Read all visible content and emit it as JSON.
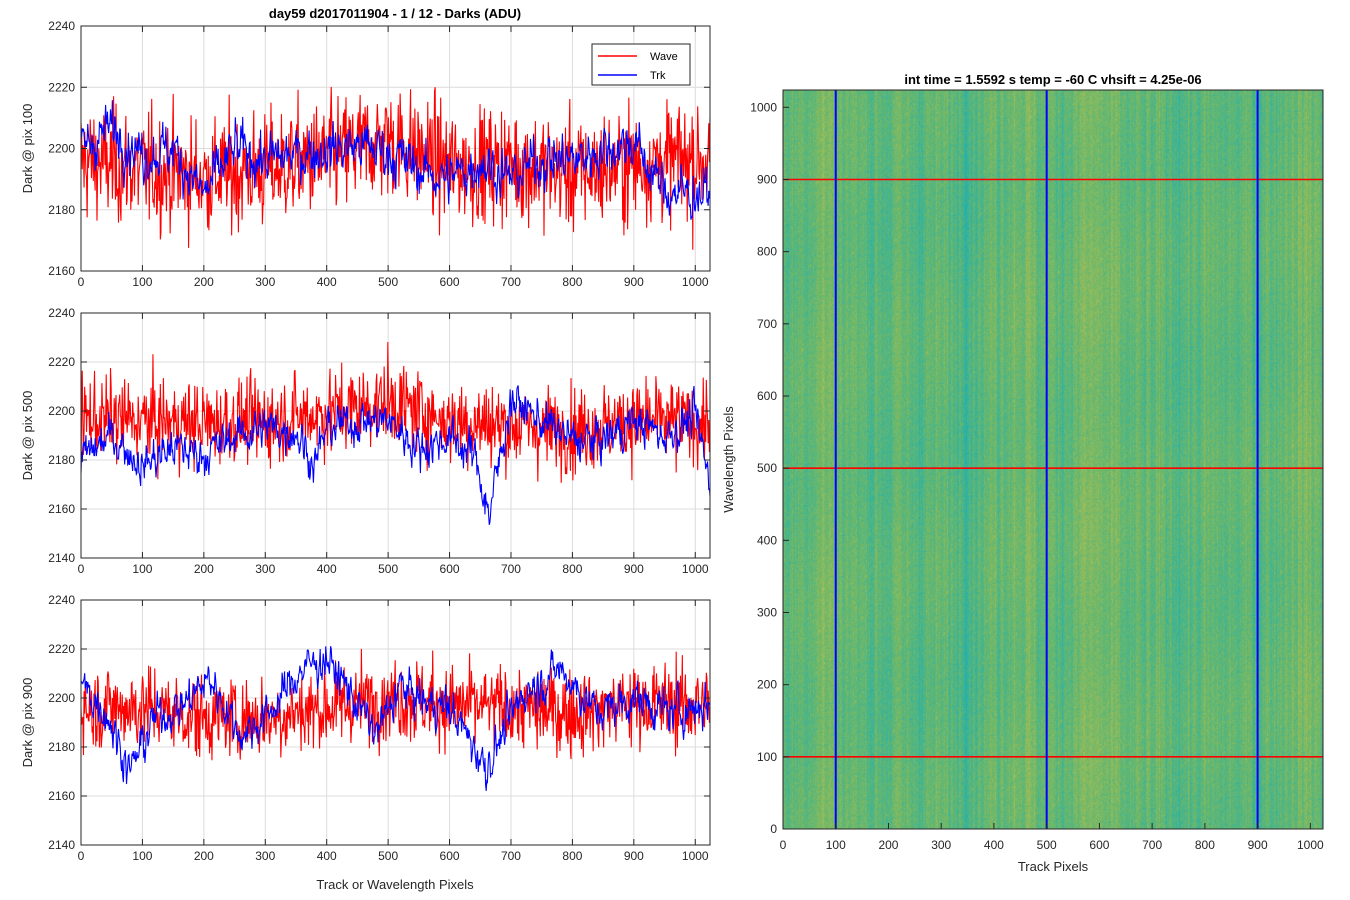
{
  "figure": {
    "title": "day59 d2017011904 - 1 / 12 - Darks (ADU)"
  },
  "chart_data": [
    {
      "type": "line",
      "panel": "top-left",
      "xlabel": "",
      "ylabel": "Dark @ pix 100",
      "xlim": [
        0,
        1024
      ],
      "ylim": [
        2160,
        2240
      ],
      "xticks": [
        0,
        100,
        200,
        300,
        400,
        500,
        600,
        700,
        800,
        900,
        1000
      ],
      "yticks": [
        2160,
        2180,
        2200,
        2220,
        2240
      ],
      "grid": true,
      "legend": {
        "placement": "top-right",
        "entries": [
          "Wave",
          "Trk"
        ]
      },
      "series": [
        {
          "name": "Wave",
          "color": "#ff0000",
          "points": 1024,
          "baseline": 2194,
          "noise_amplitude": 11,
          "x_knots": [
            0,
            100,
            200,
            300,
            400,
            500,
            600,
            700,
            800,
            900,
            1024
          ],
          "y_knots": [
            2196,
            2193,
            2191,
            2193,
            2197,
            2203,
            2194,
            2195,
            2192,
            2195,
            2197
          ]
        },
        {
          "name": "Trk",
          "color": "#0000ff",
          "points": 1024,
          "baseline": 2195,
          "noise_amplitude": 4,
          "x_knots": [
            0,
            50,
            100,
            150,
            200,
            250,
            300,
            350,
            400,
            450,
            500,
            550,
            600,
            650,
            700,
            750,
            800,
            850,
            900,
            950,
            1024
          ],
          "y_knots": [
            2200,
            2207,
            2198,
            2200,
            2185,
            2200,
            2196,
            2198,
            2200,
            2201,
            2199,
            2193,
            2190,
            2196,
            2190,
            2197,
            2196,
            2200,
            2202,
            2186,
            2185
          ]
        }
      ]
    },
    {
      "type": "line",
      "panel": "middle-left",
      "xlabel": "",
      "ylabel": "Dark @ pix 500",
      "xlim": [
        0,
        1024
      ],
      "ylim": [
        2140,
        2240
      ],
      "xticks": [
        0,
        100,
        200,
        300,
        400,
        500,
        600,
        700,
        800,
        900,
        1000
      ],
      "yticks": [
        2140,
        2160,
        2180,
        2200,
        2220,
        2240
      ],
      "grid": true,
      "series": [
        {
          "name": "Wave",
          "color": "#ff0000",
          "points": 1024,
          "baseline": 2196,
          "noise_amplitude": 10,
          "x_knots": [
            0,
            100,
            200,
            300,
            400,
            500,
            600,
            700,
            800,
            900,
            1024
          ],
          "y_knots": [
            2197,
            2196,
            2195,
            2196,
            2199,
            2204,
            2196,
            2194,
            2192,
            2196,
            2195
          ]
        },
        {
          "name": "Trk",
          "color": "#0000ff",
          "points": 1024,
          "baseline": 2188,
          "noise_amplitude": 4,
          "x_knots": [
            0,
            50,
            100,
            150,
            200,
            250,
            300,
            350,
            380,
            400,
            450,
            500,
            550,
            600,
            640,
            665,
            700,
            750,
            800,
            850,
            900,
            950,
            1000,
            1024
          ],
          "y_knots": [
            2180,
            2190,
            2178,
            2185,
            2182,
            2190,
            2193,
            2192,
            2178,
            2193,
            2196,
            2196,
            2185,
            2189,
            2182,
            2158,
            2205,
            2196,
            2188,
            2188,
            2196,
            2190,
            2198,
            2170
          ]
        }
      ]
    },
    {
      "type": "line",
      "panel": "bottom-left",
      "xlabel": "Track or Wavelength Pixels",
      "ylabel": "Dark @ pix 900",
      "xlim": [
        0,
        1024
      ],
      "ylim": [
        2140,
        2240
      ],
      "xticks": [
        0,
        100,
        200,
        300,
        400,
        500,
        600,
        700,
        800,
        900,
        1000
      ],
      "yticks": [
        2140,
        2160,
        2180,
        2200,
        2220,
        2240
      ],
      "grid": true,
      "series": [
        {
          "name": "Wave",
          "color": "#ff0000",
          "points": 1024,
          "baseline": 2196,
          "noise_amplitude": 10,
          "x_knots": [
            0,
            100,
            200,
            300,
            400,
            500,
            600,
            700,
            800,
            900,
            1024
          ],
          "y_knots": [
            2196,
            2196,
            2192,
            2192,
            2196,
            2200,
            2197,
            2196,
            2194,
            2198,
            2197
          ]
        },
        {
          "name": "Trk",
          "color": "#0000ff",
          "points": 1024,
          "baseline": 2196,
          "noise_amplitude": 4,
          "x_knots": [
            0,
            40,
            80,
            120,
            160,
            210,
            260,
            300,
            360,
            400,
            450,
            480,
            520,
            560,
            600,
            660,
            720,
            780,
            840,
            900,
            960,
            1024
          ],
          "y_knots": [
            2205,
            2195,
            2170,
            2192,
            2196,
            2208,
            2185,
            2192,
            2212,
            2216,
            2198,
            2185,
            2205,
            2198,
            2196,
            2172,
            2202,
            2212,
            2194,
            2200,
            2194,
            2198
          ]
        }
      ]
    },
    {
      "type": "heatmap",
      "panel": "right",
      "title": "int time = 1.5592 s    temp = -60 C    vhsift = 4.25e-06",
      "xlabel": "Track Pixels",
      "ylabel": "Wavelength Pixels",
      "xlim": [
        0,
        1024
      ],
      "ylim": [
        0,
        1024
      ],
      "xticks": [
        0,
        100,
        200,
        300,
        400,
        500,
        600,
        700,
        800,
        900,
        1000
      ],
      "yticks": [
        0,
        100,
        200,
        300,
        400,
        500,
        600,
        700,
        800,
        900,
        1000
      ],
      "colormap": {
        "low": "#1fb0b0",
        "mid": "#6cb86a",
        "high": "#c8c04a"
      },
      "bright_bands_x": [
        80,
        440,
        580,
        980
      ],
      "marker_lines": {
        "vertical": {
          "color": "#0000ff",
          "x": [
            100,
            500,
            900
          ]
        },
        "horizontal": {
          "color": "#ff0000",
          "y": [
            100,
            500,
            900
          ]
        }
      }
    }
  ]
}
